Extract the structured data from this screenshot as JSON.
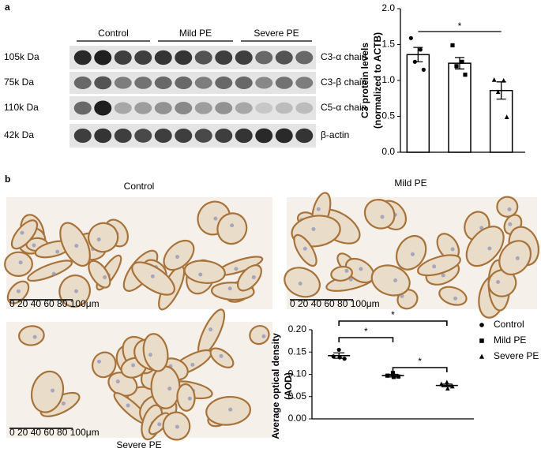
{
  "panel_labels": [
    "a",
    "b"
  ],
  "blot": {
    "groups": [
      "Control",
      "Mild PE",
      "Severe PE"
    ],
    "bands": [
      {
        "size": "105k Da",
        "name": "C3-α chain"
      },
      {
        "size": "75k Da",
        "name": "C3-β chain"
      },
      {
        "size": "110k Da",
        "name": "C5-α chain"
      },
      {
        "size": "42k Da",
        "name": "β-actin"
      }
    ]
  },
  "micrographs": [
    {
      "title": "Control",
      "scale": "0 20 40 60 80 100μm"
    },
    {
      "title": "Mild PE",
      "scale": "0 20 40 60 80 100μm"
    },
    {
      "title": "Severe PE",
      "scale": "0 20 40 60 80 100μm"
    }
  ],
  "chart_data": [
    {
      "type": "bar",
      "ylabel": [
        "C3 protein levels",
        "(normalized to ACTB)"
      ],
      "categories": [
        null,
        null,
        null
      ],
      "values": [
        1.36,
        1.24,
        0.86
      ],
      "errors": [
        0.1,
        0.08,
        0.12
      ],
      "points": [
        [
          1.59,
          1.43,
          1.26,
          1.15
        ],
        [
          1.49,
          1.26,
          1.2,
          1.08
        ],
        [
          1.01,
          1.0,
          0.84,
          0.49
        ]
      ],
      "markers": [
        "circle",
        "square",
        "triangle"
      ],
      "color": "#000000",
      "ylim": [
        0,
        2
      ],
      "yticks": [
        {
          "value": 0,
          "label": "0.0"
        },
        {
          "value": 0.5,
          "label": "0.5"
        },
        {
          "value": 1,
          "label": "1.0"
        },
        {
          "value": 1.5,
          "label": "1.5"
        },
        {
          "value": 2,
          "label": "2.0"
        }
      ],
      "annotations": [
        {
          "text": "*",
          "from": 0,
          "to": 2
        }
      ]
    },
    {
      "type": "dot",
      "ylabel": [
        "Average optical density",
        "(AOD)"
      ],
      "series": [
        {
          "name": "Control",
          "marker": "circle",
          "values": [
            0.155,
            0.14,
            0.135,
            0.138
          ],
          "mean": 0.142,
          "error": 0.006
        },
        {
          "name": "Mild PE",
          "marker": "square",
          "values": [
            0.103,
            0.097,
            0.095,
            0.094
          ],
          "mean": 0.097,
          "error": 0.003
        },
        {
          "name": "Severe PE",
          "marker": "triangle",
          "values": [
            0.082,
            0.078,
            0.073,
            0.068
          ],
          "mean": 0.075,
          "error": 0.003
        }
      ],
      "color": "#000000",
      "legend": "upper right",
      "ylim": [
        0,
        0.2
      ],
      "yticks": [
        {
          "value": 0,
          "label": "0.00"
        },
        {
          "value": 0.05,
          "label": "0.05"
        },
        {
          "value": 0.1,
          "label": "0.10"
        },
        {
          "value": 0.15,
          "label": "0.15"
        },
        {
          "value": 0.2,
          "label": "0.20"
        }
      ],
      "annotations": [
        {
          "text": "*",
          "from": 0,
          "to": 2
        },
        {
          "text": "*",
          "from": 0,
          "to": 1
        },
        {
          "text": "*",
          "from": 1,
          "to": 2
        }
      ]
    }
  ]
}
